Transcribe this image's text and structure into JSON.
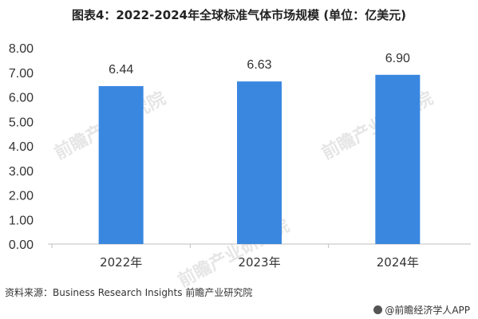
{
  "title": "图表4：2022-2024年全球标准气体市场规模 (单位：亿美元)",
  "source": "资料来源：Business Research Insights 前瞻产业研究院",
  "brand": "@前瞻经济学人APP",
  "watermark": "前瞻产业研究院",
  "colors": {
    "bar": "#3a87e0",
    "axis": "#bfbfbf"
  },
  "chart_data": {
    "type": "bar",
    "title": "图表4：2022-2024年全球标准气体市场规模 (单位：亿美元)",
    "categories": [
      "2022年",
      "2023年",
      "2024年"
    ],
    "values": [
      6.44,
      6.63,
      6.9
    ],
    "value_labels": [
      "6.44",
      "6.63",
      "6.90"
    ],
    "ylim": [
      0,
      8
    ],
    "yticks": [
      "0.00",
      "1.00",
      "2.00",
      "3.00",
      "4.00",
      "5.00",
      "6.00",
      "7.00",
      "8.00"
    ],
    "xlabel": "",
    "ylabel": "",
    "grid": false,
    "legend": "none"
  }
}
